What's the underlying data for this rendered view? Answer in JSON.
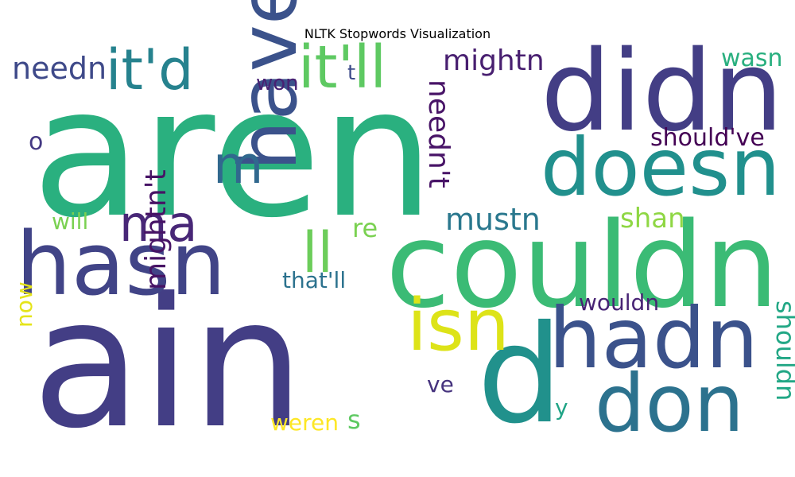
{
  "chart_data": {
    "type": "wordcloud",
    "title": "NLTK Stopwords Visualization",
    "words": [
      {
        "text": "aren",
        "color": "#2ab07f"
      },
      {
        "text": "ain",
        "color": "#433e85"
      },
      {
        "text": "didn",
        "color": "#433e85"
      },
      {
        "text": "couldn",
        "color": "#3bbb75"
      },
      {
        "text": "doesn",
        "color": "#21908d"
      },
      {
        "text": "hasn",
        "color": "#414487"
      },
      {
        "text": "haven",
        "color": "#3b528b"
      },
      {
        "text": "hadn",
        "color": "#3b528b"
      },
      {
        "text": "don",
        "color": "#2c728e"
      },
      {
        "text": "d",
        "color": "#21918c"
      },
      {
        "text": "isn",
        "color": "#dde318"
      },
      {
        "text": "it'd",
        "color": "#26828e"
      },
      {
        "text": "it'll",
        "color": "#5ec962"
      },
      {
        "text": "ma",
        "color": "#482777"
      },
      {
        "text": "m",
        "color": "#31688e"
      },
      {
        "text": "ll",
        "color": "#6ccd5a"
      },
      {
        "text": "mightn",
        "color": "#481f70"
      },
      {
        "text": "needn",
        "color": "#3e4989"
      },
      {
        "text": "needn't",
        "color": "#481467"
      },
      {
        "text": "mightn't",
        "color": "#471365"
      },
      {
        "text": "mustn",
        "color": "#2a788e"
      },
      {
        "text": "shan",
        "color": "#8fd744"
      },
      {
        "text": "should've",
        "color": "#440154"
      },
      {
        "text": "wasn",
        "color": "#29af7f"
      },
      {
        "text": "won",
        "color": "#482173"
      },
      {
        "text": "t",
        "color": "#3e4c8a"
      },
      {
        "text": "o",
        "color": "#443983"
      },
      {
        "text": "will",
        "color": "#7ad151"
      },
      {
        "text": "re",
        "color": "#7ad151"
      },
      {
        "text": "that'll",
        "color": "#2c728e"
      },
      {
        "text": "wouldn",
        "color": "#482475"
      },
      {
        "text": "shouldn",
        "color": "#22a785"
      },
      {
        "text": "now",
        "color": "#e5e419"
      },
      {
        "text": "ve",
        "color": "#46337e"
      },
      {
        "text": "y",
        "color": "#20a486"
      },
      {
        "text": "weren",
        "color": "#fde725"
      },
      {
        "text": "s",
        "color": "#5ec962"
      }
    ]
  }
}
